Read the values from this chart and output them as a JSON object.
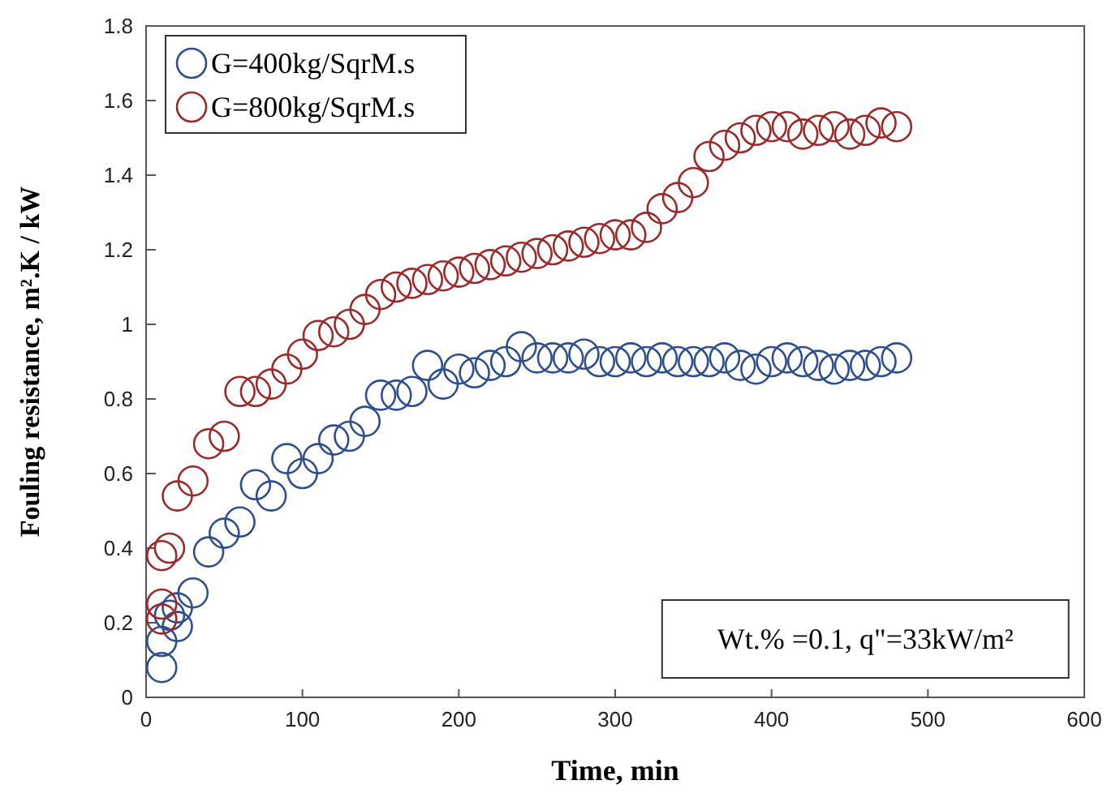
{
  "chart_data": {
    "type": "scatter",
    "xlabel": "Time, min",
    "ylabel": "Fouling resistance, m².K / kW",
    "xlim": [
      0,
      600
    ],
    "ylim": [
      0,
      1.8
    ],
    "xticks": [
      0,
      100,
      200,
      300,
      400,
      500,
      600
    ],
    "yticks": [
      0,
      0.2,
      0.4,
      0.6,
      0.8,
      1,
      1.2,
      1.4,
      1.6,
      1.8
    ],
    "grid": false,
    "legend": "top left",
    "marker": "circle",
    "annotations": [
      "Wt.% =0.1, q\"=33kW/m²"
    ],
    "series": [
      {
        "name": "G=400kg/SqrM.s",
        "color": "#2e4f8f",
        "x": [
          10,
          10,
          15,
          20,
          20,
          30,
          40,
          50,
          60,
          70,
          80,
          90,
          100,
          110,
          120,
          130,
          140,
          150,
          160,
          170,
          180,
          190,
          200,
          210,
          220,
          230,
          240,
          250,
          260,
          270,
          280,
          290,
          300,
          310,
          320,
          330,
          340,
          350,
          360,
          370,
          380,
          390,
          400,
          410,
          420,
          430,
          440,
          450,
          460,
          470,
          480
        ],
        "values": [
          0.08,
          0.15,
          0.22,
          0.19,
          0.24,
          0.28,
          0.39,
          0.44,
          0.47,
          0.57,
          0.54,
          0.64,
          0.6,
          0.64,
          0.69,
          0.7,
          0.74,
          0.81,
          0.81,
          0.82,
          0.89,
          0.84,
          0.88,
          0.87,
          0.89,
          0.9,
          0.94,
          0.91,
          0.91,
          0.91,
          0.92,
          0.9,
          0.9,
          0.91,
          0.9,
          0.91,
          0.9,
          0.9,
          0.9,
          0.91,
          0.89,
          0.88,
          0.9,
          0.91,
          0.9,
          0.89,
          0.88,
          0.89,
          0.89,
          0.9,
          0.91
        ]
      },
      {
        "name": "G=800kg/SqrM.s",
        "color": "#9b2a2a",
        "x": [
          10,
          10,
          10,
          15,
          20,
          30,
          40,
          50,
          60,
          70,
          80,
          90,
          100,
          110,
          120,
          130,
          140,
          150,
          160,
          170,
          180,
          190,
          200,
          210,
          220,
          230,
          240,
          250,
          260,
          270,
          280,
          290,
          300,
          310,
          320,
          330,
          340,
          350,
          360,
          370,
          380,
          390,
          400,
          410,
          420,
          430,
          440,
          450,
          460,
          470,
          480
        ],
        "values": [
          0.21,
          0.25,
          0.38,
          0.4,
          0.54,
          0.58,
          0.68,
          0.7,
          0.82,
          0.82,
          0.84,
          0.88,
          0.92,
          0.97,
          0.98,
          1,
          1.04,
          1.08,
          1.1,
          1.11,
          1.12,
          1.13,
          1.14,
          1.15,
          1.16,
          1.17,
          1.18,
          1.19,
          1.2,
          1.21,
          1.22,
          1.23,
          1.24,
          1.24,
          1.26,
          1.31,
          1.34,
          1.38,
          1.45,
          1.48,
          1.5,
          1.52,
          1.53,
          1.53,
          1.51,
          1.52,
          1.53,
          1.51,
          1.52,
          1.54,
          1.53
        ]
      }
    ]
  }
}
